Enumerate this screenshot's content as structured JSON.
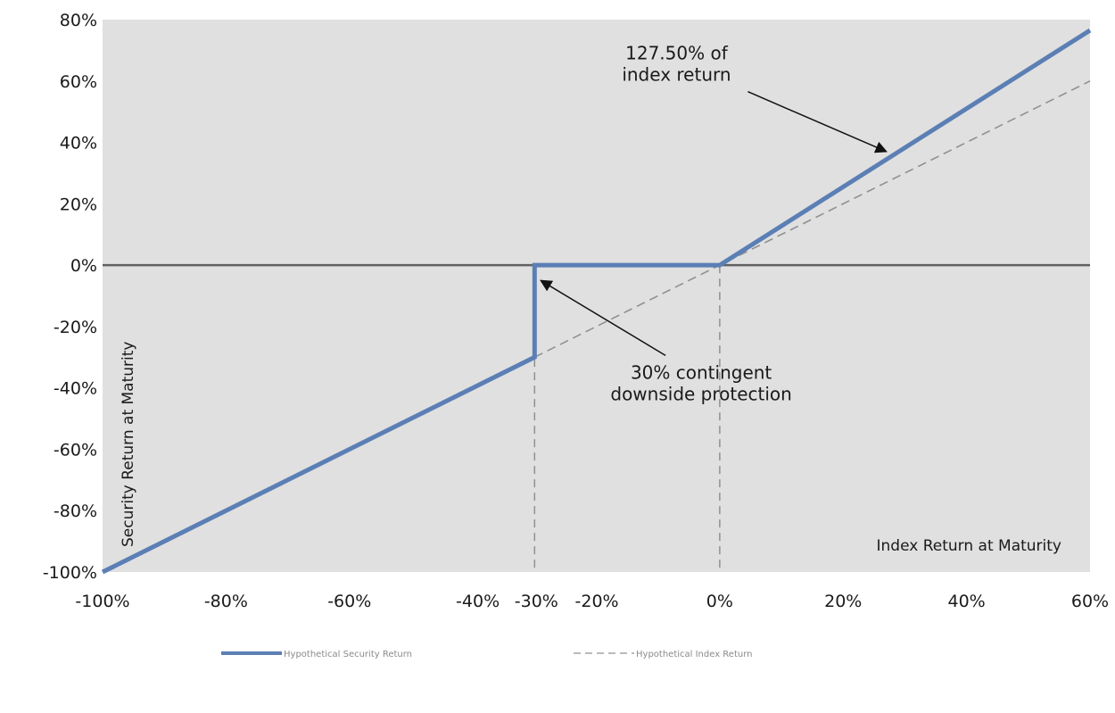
{
  "chart_data": {
    "type": "line",
    "xlabel": "Index Return at Maturity",
    "ylabel": "Security Return at Maturity",
    "xlim": [
      -100,
      60
    ],
    "ylim": [
      -100,
      80
    ],
    "x_ticks": [
      -100,
      -80,
      -60,
      -40,
      -30,
      -20,
      0,
      20,
      40,
      60
    ],
    "x_tick_labels": [
      "-100%",
      "-80%",
      "-60%",
      "-40%",
      "-30%",
      "-20%",
      "0%",
      "20%",
      "40%",
      "60%"
    ],
    "y_ticks": [
      80,
      60,
      40,
      20,
      0,
      -20,
      -40,
      -60,
      -80,
      -100
    ],
    "y_tick_labels": [
      "80%",
      "60%",
      "40%",
      "20%",
      "0%",
      "-20%",
      "-40%",
      "-60%",
      "-80%",
      "-100%"
    ],
    "grid": false,
    "background_color": "#e0e0e0",
    "series": [
      {
        "name": "Hypothetical Security Return",
        "style": "solid",
        "color": "#5b7fb5",
        "points": [
          [
            -100,
            -100
          ],
          [
            -30,
            -30
          ],
          [
            -30,
            0
          ],
          [
            0,
            0
          ],
          [
            60,
            76.5
          ]
        ]
      },
      {
        "name": "Hypothetical Index Return",
        "style": "dashed",
        "color": "#909090",
        "points": [
          [
            -30,
            -30
          ],
          [
            60,
            60
          ]
        ]
      }
    ],
    "reference_lines": [
      {
        "axis": "y",
        "value": 0,
        "style": "solid",
        "color": "#606060"
      },
      {
        "axis": "x",
        "value": -30,
        "style": "dashed",
        "color": "#909090"
      },
      {
        "axis": "x",
        "value": 0,
        "style": "dashed",
        "color": "#909090"
      }
    ],
    "annotations": [
      {
        "lines": [
          "127.50% of",
          "index return"
        ],
        "text_at": [
          -7,
          67
        ],
        "arrow_to": [
          27,
          37
        ]
      },
      {
        "lines": [
          "30% contingent",
          "downside protection"
        ],
        "text_at": [
          -3,
          -37
        ],
        "arrow_to": [
          -29,
          -5
        ]
      }
    ],
    "legend": {
      "position": "bottom",
      "entries": [
        {
          "label": "Hypothetical Security Return",
          "style": "solid",
          "color": "#5b7fb5"
        },
        {
          "label": "Hypothetical Index Return",
          "style": "dashed",
          "color": "#909090"
        }
      ]
    }
  }
}
